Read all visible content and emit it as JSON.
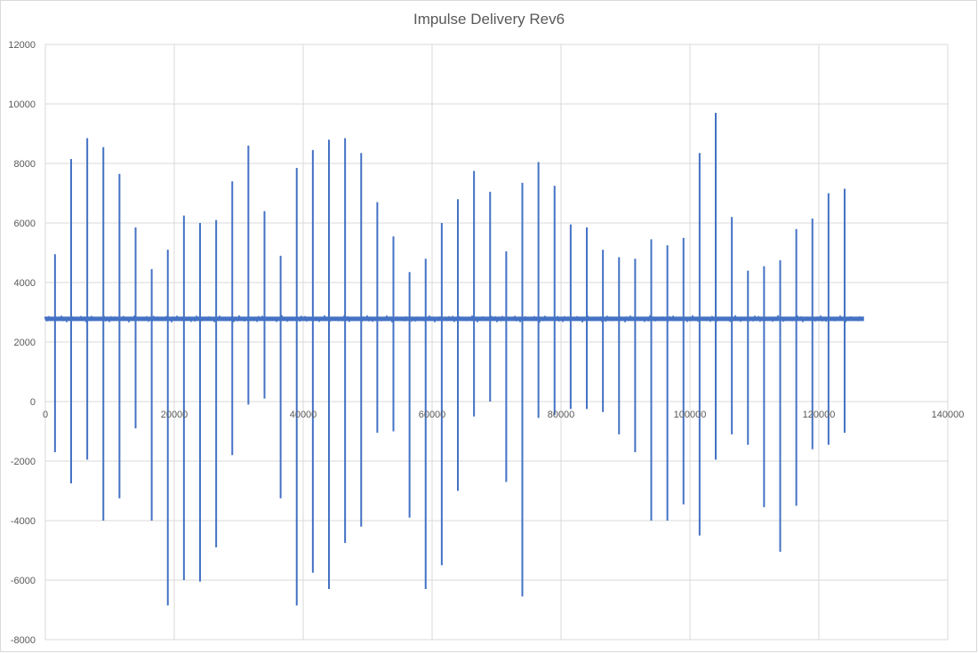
{
  "chart_data": {
    "type": "line",
    "title": "Impulse Delivery Rev6",
    "xlabel": "",
    "ylabel": "",
    "xlim": [
      0,
      140000
    ],
    "ylim": [
      -8000,
      12000
    ],
    "x_ticks": [
      0,
      20000,
      40000,
      60000,
      80000,
      100000,
      120000,
      140000
    ],
    "y_ticks": [
      -8000,
      -6000,
      -4000,
      -2000,
      0,
      2000,
      4000,
      6000,
      8000,
      10000,
      12000
    ],
    "grid": true,
    "legend": "none",
    "colors": {
      "series": "#4472c4",
      "grid": "#d9d9d9",
      "axis": "#d9d9d9",
      "text": "#595959"
    },
    "baseline": {
      "value": 2780,
      "x_start": 0,
      "x_end": 127000
    },
    "series": [
      {
        "impulses": [
          {
            "x": 1500,
            "max": 4950,
            "min": -1700
          },
          {
            "x": 4000,
            "max": 8150,
            "min": -2750
          },
          {
            "x": 6500,
            "max": 8850,
            "min": -1950
          },
          {
            "x": 9000,
            "max": 8550,
            "min": -4000
          },
          {
            "x": 11500,
            "max": 7650,
            "min": -3250
          },
          {
            "x": 14000,
            "max": 5850,
            "min": -900
          },
          {
            "x": 16500,
            "max": 4450,
            "min": -4000
          },
          {
            "x": 19000,
            "max": 5100,
            "min": -6850
          },
          {
            "x": 21500,
            "max": 6250,
            "min": -6000
          },
          {
            "x": 24000,
            "max": 6000,
            "min": -6050
          },
          {
            "x": 26500,
            "max": 6100,
            "min": -4900
          },
          {
            "x": 29000,
            "max": 7400,
            "min": -1800
          },
          {
            "x": 31500,
            "max": 8600,
            "min": -100
          },
          {
            "x": 34000,
            "max": 6400,
            "min": 100
          },
          {
            "x": 36500,
            "max": 4900,
            "min": -3250
          },
          {
            "x": 39000,
            "max": 7850,
            "min": -6850
          },
          {
            "x": 41500,
            "max": 8450,
            "min": -5750
          },
          {
            "x": 44000,
            "max": 8800,
            "min": -6300
          },
          {
            "x": 46500,
            "max": 8850,
            "min": -4750
          },
          {
            "x": 49000,
            "max": 8350,
            "min": -4200
          },
          {
            "x": 51500,
            "max": 6700,
            "min": -1050
          },
          {
            "x": 54000,
            "max": 5550,
            "min": -1000
          },
          {
            "x": 56500,
            "max": 4350,
            "min": -3900
          },
          {
            "x": 59000,
            "max": 4800,
            "min": -6300
          },
          {
            "x": 61500,
            "max": 6000,
            "min": -5500
          },
          {
            "x": 64000,
            "max": 6800,
            "min": -3000
          },
          {
            "x": 66500,
            "max": 7750,
            "min": -500
          },
          {
            "x": 69000,
            "max": 7050,
            "min": 0
          },
          {
            "x": 71500,
            "max": 5050,
            "min": -2700
          },
          {
            "x": 74000,
            "max": 7350,
            "min": -6550
          },
          {
            "x": 76500,
            "max": 8050,
            "min": -550
          },
          {
            "x": 79000,
            "max": 7250,
            "min": -450
          },
          {
            "x": 81500,
            "max": 5950,
            "min": -250
          },
          {
            "x": 84000,
            "max": 5850,
            "min": -250
          },
          {
            "x": 86500,
            "max": 5100,
            "min": -350
          },
          {
            "x": 89000,
            "max": 4850,
            "min": -1100
          },
          {
            "x": 91500,
            "max": 4800,
            "min": -1700
          },
          {
            "x": 94000,
            "max": 5450,
            "min": -4000
          },
          {
            "x": 96500,
            "max": 5250,
            "min": -4000
          },
          {
            "x": 99000,
            "max": 5500,
            "min": -3450
          },
          {
            "x": 101500,
            "max": 8350,
            "min": -4500
          },
          {
            "x": 104000,
            "max": 9700,
            "min": -1950
          },
          {
            "x": 106500,
            "max": 6200,
            "min": -1100
          },
          {
            "x": 109000,
            "max": 4400,
            "min": -1450
          },
          {
            "x": 111500,
            "max": 4550,
            "min": -3550
          },
          {
            "x": 114000,
            "max": 4750,
            "min": -5050
          },
          {
            "x": 116500,
            "max": 5800,
            "min": -3500
          },
          {
            "x": 119000,
            "max": 6150,
            "min": -1600
          },
          {
            "x": 121500,
            "max": 7000,
            "min": -1450
          },
          {
            "x": 124000,
            "max": 7150,
            "min": -1050
          }
        ]
      }
    ]
  }
}
